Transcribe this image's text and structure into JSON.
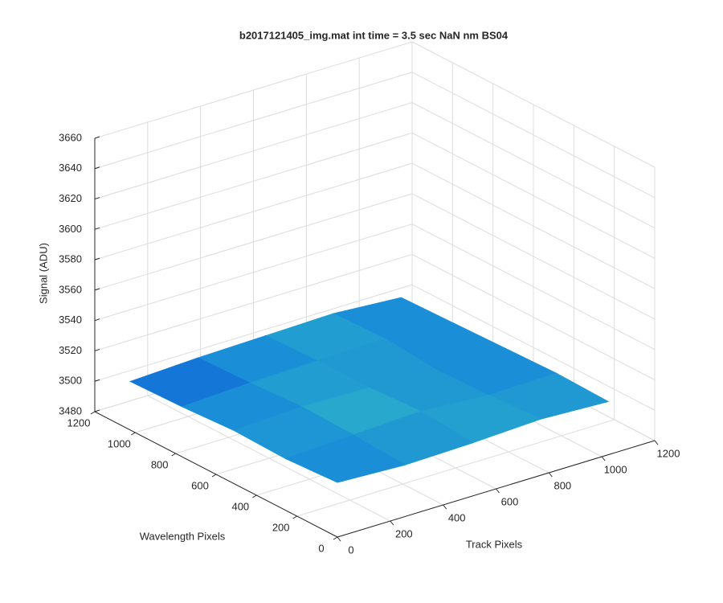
{
  "chart_data": {
    "type": "surface",
    "title": "b2017121405_img.mat int time = 3.5 sec  NaN nm BS04",
    "xlabel": "Track Pixels",
    "ylabel": "Wavelength Pixels",
    "zlabel": "Signal (ADU)",
    "x": [
      0,
      256,
      512,
      768,
      1024
    ],
    "y": [
      0,
      256,
      512,
      768,
      1024
    ],
    "z": [
      [
        3516,
        3514,
        3515,
        3517,
        3515
      ],
      [
        3514,
        3516,
        3518,
        3515,
        3516
      ],
      [
        3515,
        3517,
        3516,
        3514,
        3515
      ],
      [
        3513,
        3515,
        3516,
        3517,
        3514
      ],
      [
        3512,
        3514,
        3515,
        3516,
        3513
      ]
    ],
    "xlim": [
      0,
      1200
    ],
    "ylim": [
      0,
      1200
    ],
    "zlim": [
      3480,
      3660
    ],
    "xticks": [
      0,
      200,
      400,
      600,
      800,
      1000,
      1200
    ],
    "yticks": [
      0,
      200,
      400,
      600,
      800,
      1000,
      1200
    ],
    "zticks": [
      3480,
      3500,
      3520,
      3540,
      3560,
      3580,
      3600,
      3620,
      3640,
      3660
    ],
    "grid": true,
    "colormap": [
      "#0d5fd6",
      "#1b8ed8",
      "#2fbac4"
    ]
  }
}
